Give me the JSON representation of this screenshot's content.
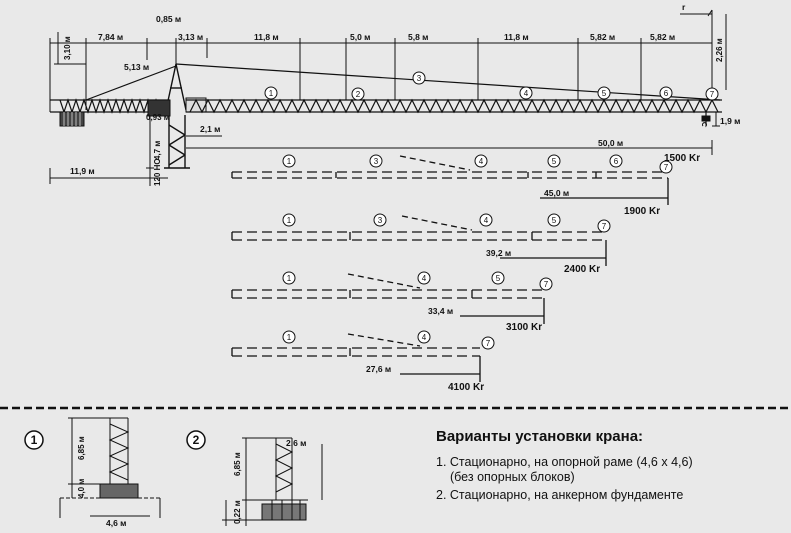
{
  "top_dims": {
    "h_310": "3,10 м",
    "d_784": "7,84 м",
    "d_085": "0,85 м",
    "d_313": "3,13 м",
    "d_118a": "11,8 м",
    "d_50": "5,0 м",
    "d_58": "5,8 м",
    "d_118b": "11,8 м",
    "d_582a": "5,82 м",
    "d_582b": "5,82 м",
    "h_226": "2,26 м",
    "r": "r",
    "d_513": "5,13 м",
    "d_21": "2,1 м",
    "d_119": "11,9 м",
    "d_19": "1,9 м",
    "v_47": "4,7 м",
    "v_120": "120 НО",
    "v_093": "0,93 м"
  },
  "segments": [
    "1",
    "2",
    "3",
    "4",
    "5",
    "6",
    "7"
  ],
  "variants": [
    {
      "reach": "50,0 м",
      "load": "1500 Kr",
      "labels": [
        "1",
        "3",
        "4",
        "5",
        "6",
        "7"
      ]
    },
    {
      "reach": "45,0 м",
      "load": "1900 Kr",
      "labels": [
        "1",
        "3",
        "4",
        "5",
        "7"
      ]
    },
    {
      "reach": "39,2 м",
      "load": "2400 Kr",
      "labels": [
        "1",
        "4",
        "5",
        "7"
      ]
    },
    {
      "reach": "33,4 м",
      "load": "3100 Kr",
      "labels": [
        "1",
        "4",
        "7"
      ]
    },
    {
      "reach": "27,6 м",
      "load": "4100 Kr",
      "labels": []
    }
  ],
  "install": {
    "n1": "1",
    "n2": "2",
    "d1_h": "6,85 м",
    "d1_b": "4,0 м",
    "d1_w": "4,6 м",
    "d2_t": "2,6 м",
    "d2_h": "6,85 м",
    "d2_b": "0,22 м"
  },
  "legend": {
    "title": "Варианты установки крана:",
    "item1": "1. Стационарно, на опорной раме (4,6 x 4,6)",
    "item1_sub": "(без опорных блоков)",
    "item2": "2. Стационарно, на анкерном фундаменте"
  }
}
